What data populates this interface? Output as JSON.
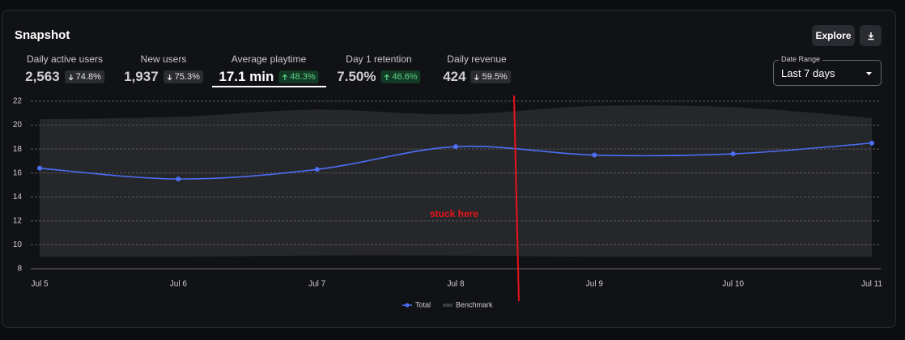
{
  "header": {
    "title": "Snapshot",
    "explore_button": "Explore"
  },
  "metrics": [
    {
      "label": "Daily active users",
      "value": "2,563",
      "change": "74.8%",
      "direction": "down",
      "selected": false
    },
    {
      "label": "New users",
      "value": "1,937",
      "change": "75.3%",
      "direction": "down",
      "selected": false
    },
    {
      "label": "Average playtime",
      "value": "17.1 min",
      "change": "48.3%",
      "direction": "up",
      "selected": true
    },
    {
      "label": "Day 1 retention",
      "value": "7.50%",
      "change": "46.6%",
      "direction": "up",
      "selected": false
    },
    {
      "label": "Daily revenue",
      "value": "424",
      "change": "59.5%",
      "direction": "down",
      "selected": false
    }
  ],
  "date_range": {
    "label": "Date Range",
    "value": "Last 7 days"
  },
  "chart_data": {
    "type": "line",
    "categories": [
      "Jul 5",
      "Jul 6",
      "Jul 7",
      "Jul 8",
      "Jul 9",
      "Jul 10",
      "Jul 11"
    ],
    "series": [
      {
        "name": "Total",
        "color": "#4c6ef5",
        "values": [
          16.4,
          15.5,
          16.3,
          18.2,
          17.5,
          17.6,
          18.5
        ]
      },
      {
        "name": "Benchmark",
        "color": "#26272b",
        "low": [
          9,
          9,
          9.1,
          9.1,
          9,
          9,
          9
        ],
        "high": [
          20.5,
          20.7,
          21.3,
          20.9,
          21.6,
          21.5,
          20.6
        ]
      }
    ],
    "ylim": [
      8,
      22
    ],
    "yticks": [
      8,
      10,
      12,
      14,
      16,
      18,
      20,
      22
    ],
    "grid": true,
    "annotation": "stuck here",
    "annotation_color": "#e8141b"
  }
}
